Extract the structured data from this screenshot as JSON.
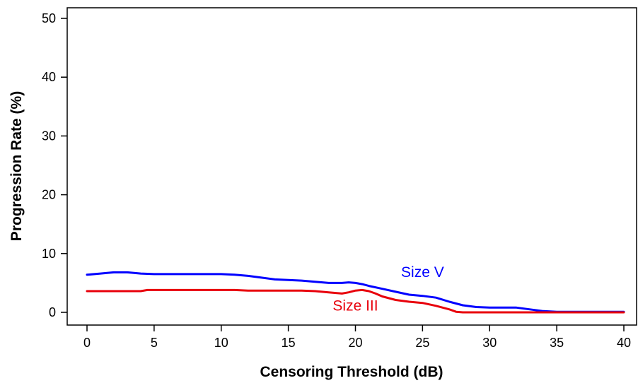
{
  "chart_data": {
    "type": "line",
    "xlabel": "Censoring Threshold (dB)",
    "ylabel": "Progression Rate (%)",
    "xlim": [
      0,
      40
    ],
    "ylim": [
      0,
      50
    ],
    "x_ticks": [
      0,
      5,
      10,
      15,
      20,
      25,
      30,
      35,
      40
    ],
    "y_ticks": [
      0,
      10,
      20,
      30,
      40,
      50
    ],
    "grid": false,
    "legend": "none",
    "series": [
      {
        "name": "Size V",
        "color": "#0000ff",
        "label_position": [
          25.0,
          6.0
        ],
        "x": [
          0,
          1,
          2,
          3,
          4,
          5,
          6,
          8,
          10,
          11,
          12,
          13,
          14,
          15,
          16,
          17,
          18,
          19,
          19.5,
          20,
          20.5,
          21,
          22,
          23,
          24,
          25,
          26,
          27,
          28,
          29,
          30,
          31,
          32,
          33,
          34,
          35,
          36,
          38,
          40
        ],
        "y": [
          6.4,
          6.6,
          6.8,
          6.8,
          6.6,
          6.5,
          6.5,
          6.5,
          6.5,
          6.4,
          6.2,
          5.9,
          5.6,
          5.5,
          5.4,
          5.2,
          5.0,
          5.0,
          5.1,
          5.0,
          4.8,
          4.5,
          4.0,
          3.5,
          3.0,
          2.8,
          2.5,
          1.8,
          1.2,
          0.9,
          0.8,
          0.8,
          0.8,
          0.5,
          0.2,
          0.1,
          0.1,
          0.1,
          0.1
        ]
      },
      {
        "name": "Size III",
        "color": "#e8000b",
        "label_position": [
          20.0,
          0.3
        ],
        "x": [
          0,
          2,
          4,
          4.5,
          6,
          8,
          10,
          11,
          12,
          14,
          16,
          17,
          18,
          19,
          19.5,
          20,
          20.5,
          21,
          21.5,
          22,
          23,
          24,
          25,
          26,
          27,
          27.5,
          28,
          30,
          32,
          34,
          36,
          38,
          39,
          40
        ],
        "y": [
          3.6,
          3.6,
          3.6,
          3.8,
          3.8,
          3.8,
          3.8,
          3.8,
          3.7,
          3.7,
          3.7,
          3.6,
          3.4,
          3.2,
          3.4,
          3.7,
          3.8,
          3.6,
          3.2,
          2.7,
          2.1,
          1.8,
          1.6,
          1.1,
          0.5,
          0.1,
          0.0,
          0.0,
          0.0,
          0.0,
          0.0,
          0.0,
          0.0,
          0.0
        ]
      }
    ]
  }
}
